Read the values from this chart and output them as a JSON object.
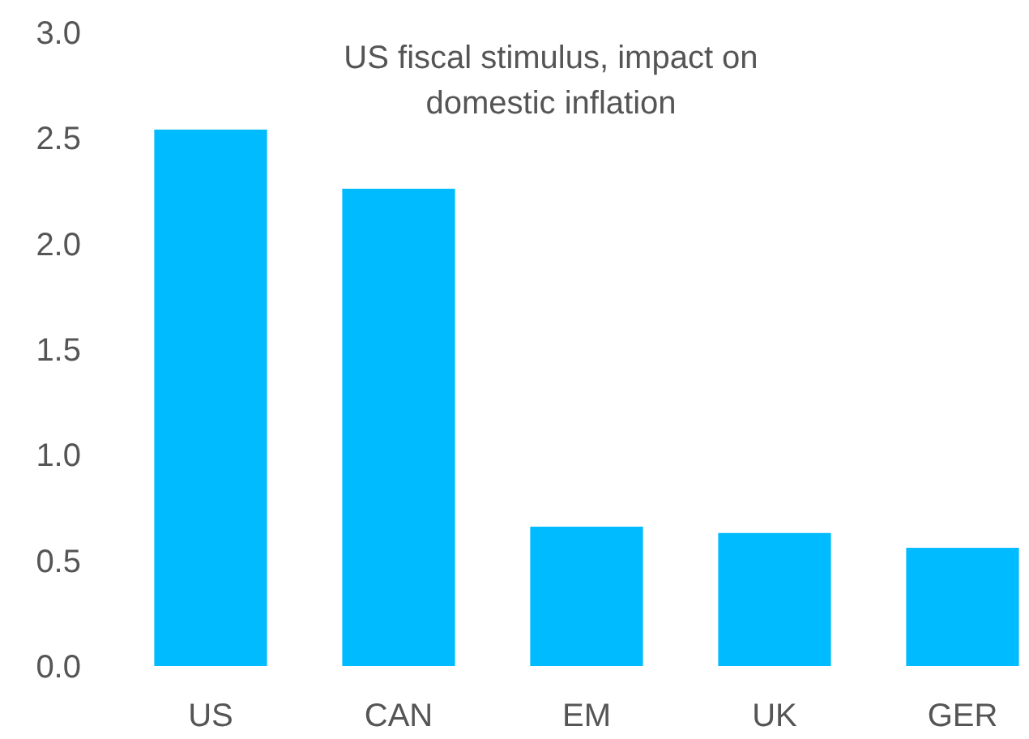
{
  "chart_data": {
    "type": "bar",
    "title": "US fiscal stimulus, impact on domestic inflation",
    "categories": [
      "US",
      "CAN",
      "EM",
      "UK",
      "GER"
    ],
    "values": [
      2.54,
      2.26,
      0.66,
      0.63,
      0.56
    ],
    "color": "#00bbff",
    "ylim": [
      0,
      3
    ],
    "yticks": [
      {
        "value": 0,
        "label": "0.0"
      },
      {
        "value": 0.5,
        "label": "0.5"
      },
      {
        "value": 1,
        "label": "1.0"
      },
      {
        "value": 1.5,
        "label": "1.5"
      },
      {
        "value": 2,
        "label": "2.0"
      },
      {
        "value": 2.5,
        "label": "2.5"
      },
      {
        "value": 3,
        "label": "3.0"
      }
    ],
    "grid": false
  }
}
